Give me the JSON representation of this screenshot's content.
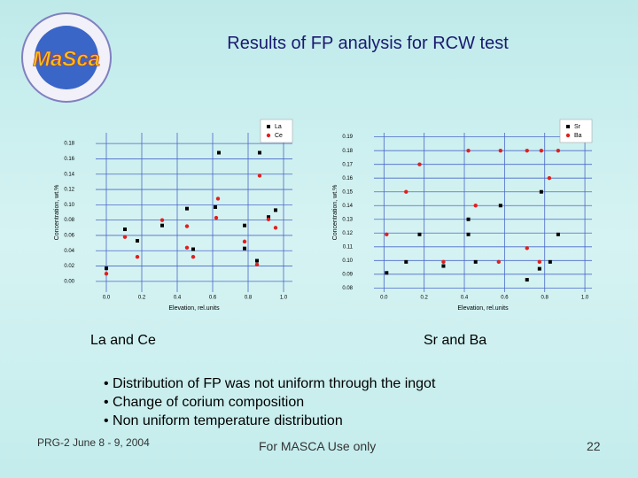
{
  "slide": {
    "title": "Results of FP analysis for RCW test",
    "logo": "MaSca",
    "caption_left": "La and Ce",
    "caption_right": "Sr and Ba",
    "bullets": [
      "• Distribution of FP was not uniform through the ingot",
      "• Change of corium composition",
      "• Non uniform temperature distribution"
    ],
    "footer_left": "PRG-2 June 8 - 9, 2004",
    "footer_center": "For MASCA Use only",
    "page_number": "22"
  },
  "chart_data": [
    {
      "type": "scatter",
      "xlabel": "Elevation, rel.units",
      "ylabel": "Concentration, wt.%",
      "xlim": [
        -0.06,
        1.05
      ],
      "ylim": [
        -0.014,
        0.194
      ],
      "xticks": [
        {
          "value": 0,
          "label": "0.0"
        },
        0.2,
        0.4,
        0.6,
        0.8,
        {
          "value": 1,
          "label": "1.0"
        }
      ],
      "yticks": [
        {
          "value": 0,
          "label": "0.00"
        },
        {
          "value": 0.02,
          "label": "0.02"
        },
        {
          "value": 0.04,
          "label": "0.04"
        },
        {
          "value": 0.06,
          "label": "0.06"
        },
        {
          "value": 0.08,
          "label": "0.08"
        },
        {
          "value": 0.1,
          "label": "0.10"
        },
        {
          "value": 0.12,
          "label": "0.12"
        },
        {
          "value": 0.14,
          "label": "0.14"
        },
        {
          "value": 0.16,
          "label": "0.16"
        },
        {
          "value": 0.18,
          "label": "0.18"
        }
      ],
      "grid": true,
      "legend": "upper right",
      "series": [
        {
          "name": "La",
          "color": "#000000",
          "marker": "square",
          "x": [
            0,
            0.105,
            0.175,
            0.315,
            0.455,
            0.49,
            0.615,
            0.635,
            0.78,
            0.78,
            0.865,
            0.85,
            0.915,
            0.955
          ],
          "values": [
            0.017,
            0.068,
            0.053,
            0.073,
            0.095,
            0.042,
            0.097,
            0.168,
            0.073,
            0.043,
            0.168,
            0.027,
            0.084,
            0.093
          ]
        },
        {
          "name": "Ce",
          "color": "#e02020",
          "marker": "circle",
          "x": [
            0,
            0.105,
            0.175,
            0.315,
            0.455,
            0.455,
            0.49,
            0.63,
            0.62,
            0.78,
            0.865,
            0.85,
            0.915,
            0.955
          ],
          "values": [
            0.01,
            0.058,
            0.032,
            0.08,
            0.072,
            0.044,
            0.032,
            0.108,
            0.083,
            0.052,
            0.138,
            0.022,
            0.081,
            0.07
          ]
        }
      ]
    },
    {
      "type": "scatter",
      "xlabel": "Elevation, rel.units",
      "ylabel": "Concentration, wt.%",
      "xlim": [
        -0.05,
        1.035
      ],
      "ylim": [
        0.077,
        0.193
      ],
      "xticks": [
        {
          "value": 0,
          "label": "0.0"
        },
        0.2,
        0.4,
        0.6,
        0.8,
        {
          "value": 1,
          "label": "1.0"
        }
      ],
      "yticks": [
        {
          "value": 0.08,
          "label": "0.08"
        },
        {
          "value": 0.09,
          "label": "0.09"
        },
        {
          "value": 0.1,
          "label": "0.10"
        },
        {
          "value": 0.11,
          "label": "0.11"
        },
        {
          "value": 0.12,
          "label": "0.12"
        },
        {
          "value": 0.13,
          "label": "0.13"
        },
        {
          "value": 0.14,
          "label": "0.14"
        },
        {
          "value": 0.15,
          "label": "0.15"
        },
        {
          "value": 0.16,
          "label": "0.16"
        },
        {
          "value": 0.17,
          "label": "0.17"
        },
        {
          "value": 0.18,
          "label": "0.18"
        },
        {
          "value": 0.19,
          "label": "0.19"
        }
      ],
      "grid": true,
      "legend": "upper right",
      "series": [
        {
          "name": "Sr",
          "color": "#000000",
          "marker": "square",
          "x": [
            0.013,
            0.11,
            0.177,
            0.296,
            0.42,
            0.42,
            0.456,
            0.58,
            0.712,
            0.783,
            0.774,
            0.827,
            0.867
          ],
          "values": [
            0.091,
            0.099,
            0.119,
            0.096,
            0.13,
            0.119,
            0.099,
            0.14,
            0.086,
            0.15,
            0.094,
            0.099,
            0.119
          ]
        },
        {
          "name": "Ba",
          "color": "#e02020",
          "marker": "circle",
          "x": [
            0.013,
            0.11,
            0.177,
            0.296,
            0.42,
            0.456,
            0.58,
            0.571,
            0.712,
            0.712,
            0.783,
            0.774,
            0.823,
            0.867
          ],
          "values": [
            0.119,
            0.15,
            0.17,
            0.099,
            0.18,
            0.14,
            0.18,
            0.099,
            0.18,
            0.109,
            0.18,
            0.099,
            0.16,
            0.18
          ]
        }
      ]
    }
  ]
}
